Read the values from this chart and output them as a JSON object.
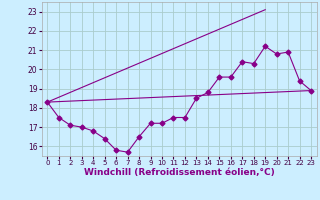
{
  "xlabel": "Windchill (Refroidissement éolien,°C)",
  "background_color": "#cceeff",
  "grid_color": "#aacccc",
  "line_color": "#880088",
  "xlim": [
    -0.5,
    23.5
  ],
  "ylim": [
    15.5,
    23.5
  ],
  "yticks": [
    16,
    17,
    18,
    19,
    20,
    21,
    22,
    23
  ],
  "xticks": [
    0,
    1,
    2,
    3,
    4,
    5,
    6,
    7,
    8,
    9,
    10,
    11,
    12,
    13,
    14,
    15,
    16,
    17,
    18,
    19,
    20,
    21,
    22,
    23
  ],
  "series1": {
    "x": [
      0,
      1,
      2,
      3,
      4,
      5,
      6,
      7,
      8,
      9,
      10,
      11,
      12,
      13,
      14,
      15,
      16,
      17,
      18,
      19,
      20,
      21,
      22,
      23
    ],
    "y": [
      18.3,
      17.5,
      17.1,
      17.0,
      16.8,
      16.4,
      15.8,
      15.7,
      16.5,
      17.2,
      17.2,
      17.5,
      17.5,
      18.5,
      18.8,
      19.6,
      19.6,
      20.4,
      20.3,
      21.2,
      20.8,
      20.9,
      19.4,
      18.9
    ]
  },
  "series2": {
    "x": [
      0,
      23
    ],
    "y": [
      18.3,
      18.9
    ]
  },
  "series3": {
    "x": [
      0,
      19
    ],
    "y": [
      18.3,
      23.1
    ]
  },
  "marker": "D",
  "markersize": 2.5,
  "linewidth": 0.8
}
